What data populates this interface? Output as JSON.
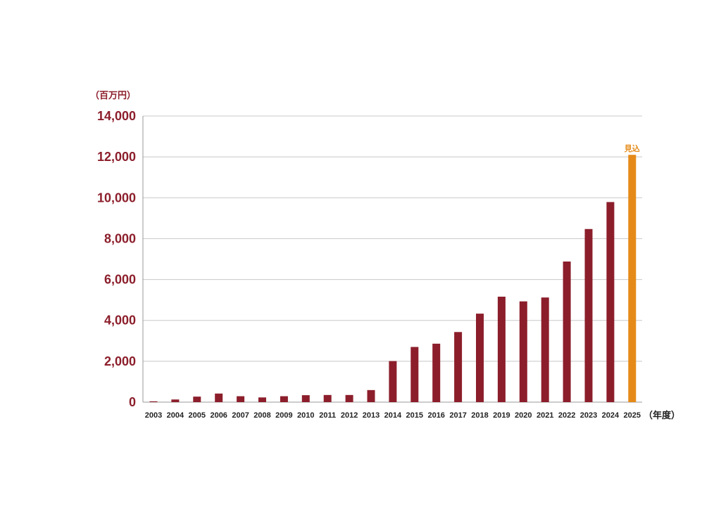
{
  "chart_data": {
    "type": "bar",
    "ylabel": "（百万円）",
    "xlabel": "（年度）",
    "ylim": [
      0,
      14000
    ],
    "yticks": [
      "0",
      "2,000",
      "4,000",
      "6,000",
      "8,000",
      "10,000",
      "12,000",
      "14,000"
    ],
    "ytick_values": [
      0,
      2000,
      4000,
      6000,
      8000,
      10000,
      12000,
      14000
    ],
    "grid": true,
    "categories": [
      "2003",
      "2004",
      "2005",
      "2006",
      "2007",
      "2008",
      "2009",
      "2010",
      "2011",
      "2012",
      "2013",
      "2014",
      "2015",
      "2016",
      "2017",
      "2018",
      "2019",
      "2020",
      "2021",
      "2022",
      "2023",
      "2024",
      "2025"
    ],
    "values": [
      40,
      130,
      270,
      420,
      290,
      230,
      290,
      340,
      350,
      350,
      590,
      2010,
      2700,
      2860,
      3430,
      4330,
      5160,
      4930,
      5120,
      6880,
      8470,
      9790,
      12100
    ],
    "annotations": [
      {
        "category": "2025",
        "text": "見込"
      }
    ],
    "colors": {
      "actual": "#8c1e2b",
      "forecast": "#e58a18",
      "axis_text": "#8c1e2b",
      "grid": "#c8c8c8"
    }
  }
}
